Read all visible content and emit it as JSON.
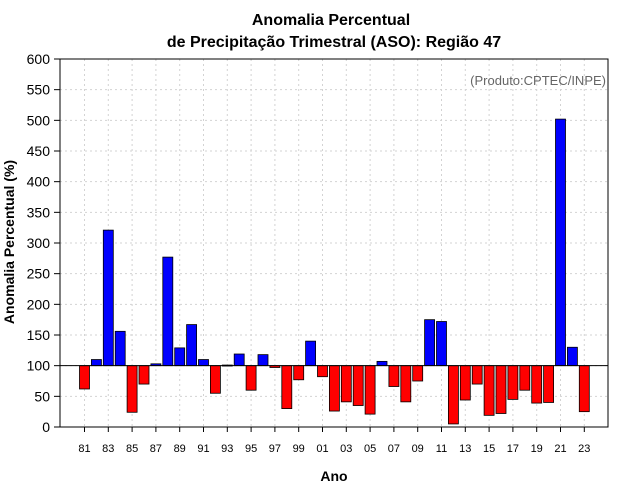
{
  "chart_data": {
    "type": "bar",
    "title_line1": "Anomalia Percentual",
    "title_line2": "de Precipitação Trimestral (ASO): Região 47",
    "xlabel": "Ano",
    "ylabel": "Anomalia Percentual (%)",
    "credit": "(Produto:CPTEC/INPE)",
    "baseline": 100,
    "ylim": [
      0,
      600
    ],
    "yticks": [
      0,
      50,
      100,
      150,
      200,
      250,
      300,
      350,
      400,
      450,
      500,
      550,
      600
    ],
    "grid": true,
    "colors": {
      "above": "#0000ff",
      "below": "#ff0000",
      "edge": "#000000",
      "grid": "#d3d3d3"
    },
    "categories": [
      "81",
      "82",
      "83",
      "84",
      "85",
      "86",
      "87",
      "88",
      "89",
      "90",
      "91",
      "92",
      "93",
      "94",
      "95",
      "96",
      "97",
      "98",
      "99",
      "00",
      "01",
      "02",
      "03",
      "04",
      "05",
      "06",
      "07",
      "08",
      "09",
      "10",
      "11",
      "12",
      "13",
      "14",
      "15",
      "16",
      "17",
      "18",
      "19",
      "20",
      "21",
      "22",
      "23"
    ],
    "xtick_labels": [
      "81",
      "83",
      "85",
      "87",
      "89",
      "91",
      "93",
      "95",
      "97",
      "99",
      "01",
      "03",
      "05",
      "07",
      "09",
      "11",
      "13",
      "15",
      "17",
      "19",
      "21",
      "23"
    ],
    "values": [
      62,
      110,
      321,
      156,
      24,
      70,
      103,
      277,
      129,
      167,
      110,
      55,
      101,
      119,
      60,
      118,
      97,
      30,
      77,
      140,
      82,
      26,
      41,
      35,
      21,
      107,
      66,
      41,
      75,
      175,
      172,
      5,
      44,
      70,
      19,
      22,
      45,
      60,
      39,
      40,
      502,
      130,
      25
    ]
  }
}
